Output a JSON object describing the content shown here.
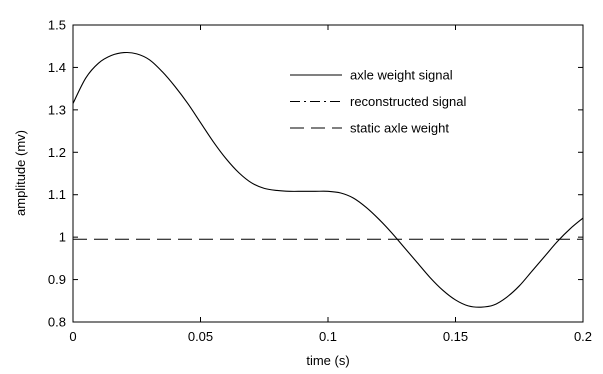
{
  "chart_data": {
    "type": "line",
    "title": "",
    "xlabel": "time (s)",
    "ylabel": "amplitude (mv)",
    "xlim": [
      0,
      0.2
    ],
    "ylim": [
      0.8,
      1.5
    ],
    "xticks": [
      "0",
      "0.05",
      "0.1",
      "0.15",
      "0.2"
    ],
    "yticks": [
      "0.8",
      "0.9",
      "1",
      "1.1",
      "1.2",
      "1.3",
      "1.4",
      "1.5"
    ],
    "grid": false,
    "legend_position": "top-right",
    "series": [
      {
        "name": "axle weight signal",
        "line_style": "solid",
        "color": "#000000",
        "x": [
          0,
          0.005,
          0.01,
          0.015,
          0.02,
          0.025,
          0.03,
          0.035,
          0.04,
          0.045,
          0.05,
          0.055,
          0.06,
          0.065,
          0.07,
          0.075,
          0.08,
          0.085,
          0.09,
          0.095,
          0.1,
          0.105,
          0.11,
          0.115,
          0.12,
          0.125,
          0.13,
          0.135,
          0.14,
          0.145,
          0.15,
          0.155,
          0.16,
          0.165,
          0.17,
          0.175,
          0.18,
          0.185,
          0.19,
          0.195,
          0.2
        ],
        "y": [
          1.315,
          1.375,
          1.41,
          1.428,
          1.435,
          1.432,
          1.418,
          1.39,
          1.355,
          1.315,
          1.27,
          1.225,
          1.185,
          1.152,
          1.128,
          1.115,
          1.11,
          1.108,
          1.108,
          1.108,
          1.108,
          1.104,
          1.092,
          1.07,
          1.042,
          1.01,
          0.975,
          0.94,
          0.905,
          0.875,
          0.852,
          0.838,
          0.835,
          0.84,
          0.858,
          0.885,
          0.92,
          0.955,
          0.99,
          1.02,
          1.045
        ]
      },
      {
        "name": "reconstructed signal",
        "line_style": "dash-dot",
        "color": "#000000",
        "x": [],
        "y": []
      },
      {
        "name": "static axle weight",
        "line_style": "dashed",
        "color": "#000000",
        "x": [
          0,
          0.2
        ],
        "y": [
          0.995,
          0.995
        ]
      }
    ]
  }
}
